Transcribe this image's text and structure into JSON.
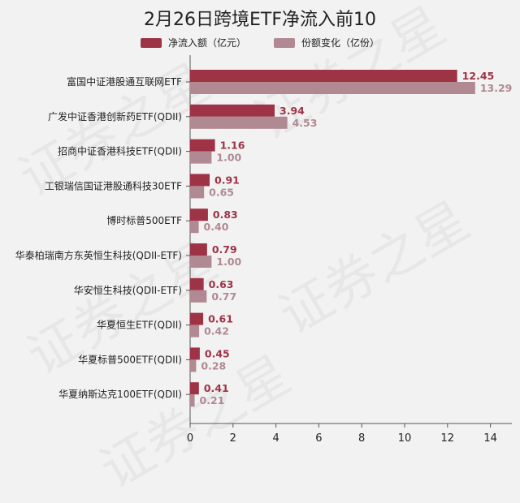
{
  "chart_data": {
    "type": "bar",
    "orientation": "horizontal",
    "title": "2月26日跨境ETF净流入前10",
    "categories": [
      "富国中证港股通互联网ETF",
      "广发中证香港创新药ETF(QDII)",
      "招商中证香港科技ETF(QDII)",
      "工银瑞信国证港股通科技30ETF",
      "博时标普500ETF",
      "华泰柏瑞南方东英恒生科技(QDII-ETF)",
      "华安恒生科技(QDII-ETF)",
      "华夏恒生ETF(QDII)",
      "华夏标普500ETF(QDII)",
      "华夏纳斯达克100ETF(QDII)"
    ],
    "series": [
      {
        "name": "净流入额（亿元）",
        "color": "#9e3346",
        "values": [
          12.45,
          3.94,
          1.16,
          0.91,
          0.83,
          0.79,
          0.63,
          0.61,
          0.45,
          0.41
        ],
        "labels": [
          "12.45",
          "3.94",
          "1.16",
          "0.91",
          "0.83",
          "0.79",
          "0.63",
          "0.61",
          "0.45",
          "0.41"
        ]
      },
      {
        "name": "份额变化（亿份）",
        "color": "#b08992",
        "values": [
          13.29,
          4.53,
          1.0,
          0.65,
          0.4,
          1.0,
          0.77,
          0.42,
          0.28,
          0.21
        ],
        "labels": [
          "13.29",
          "4.53",
          "1.00",
          "0.65",
          "0.40",
          "1.00",
          "0.77",
          "0.42",
          "0.28",
          "0.21"
        ]
      }
    ],
    "xlim": [
      0,
      15
    ],
    "xticks": [
      0,
      2,
      4,
      6,
      8,
      10,
      12,
      14
    ],
    "legend_position": "top-center",
    "grid": false
  },
  "watermark": "证券之星"
}
